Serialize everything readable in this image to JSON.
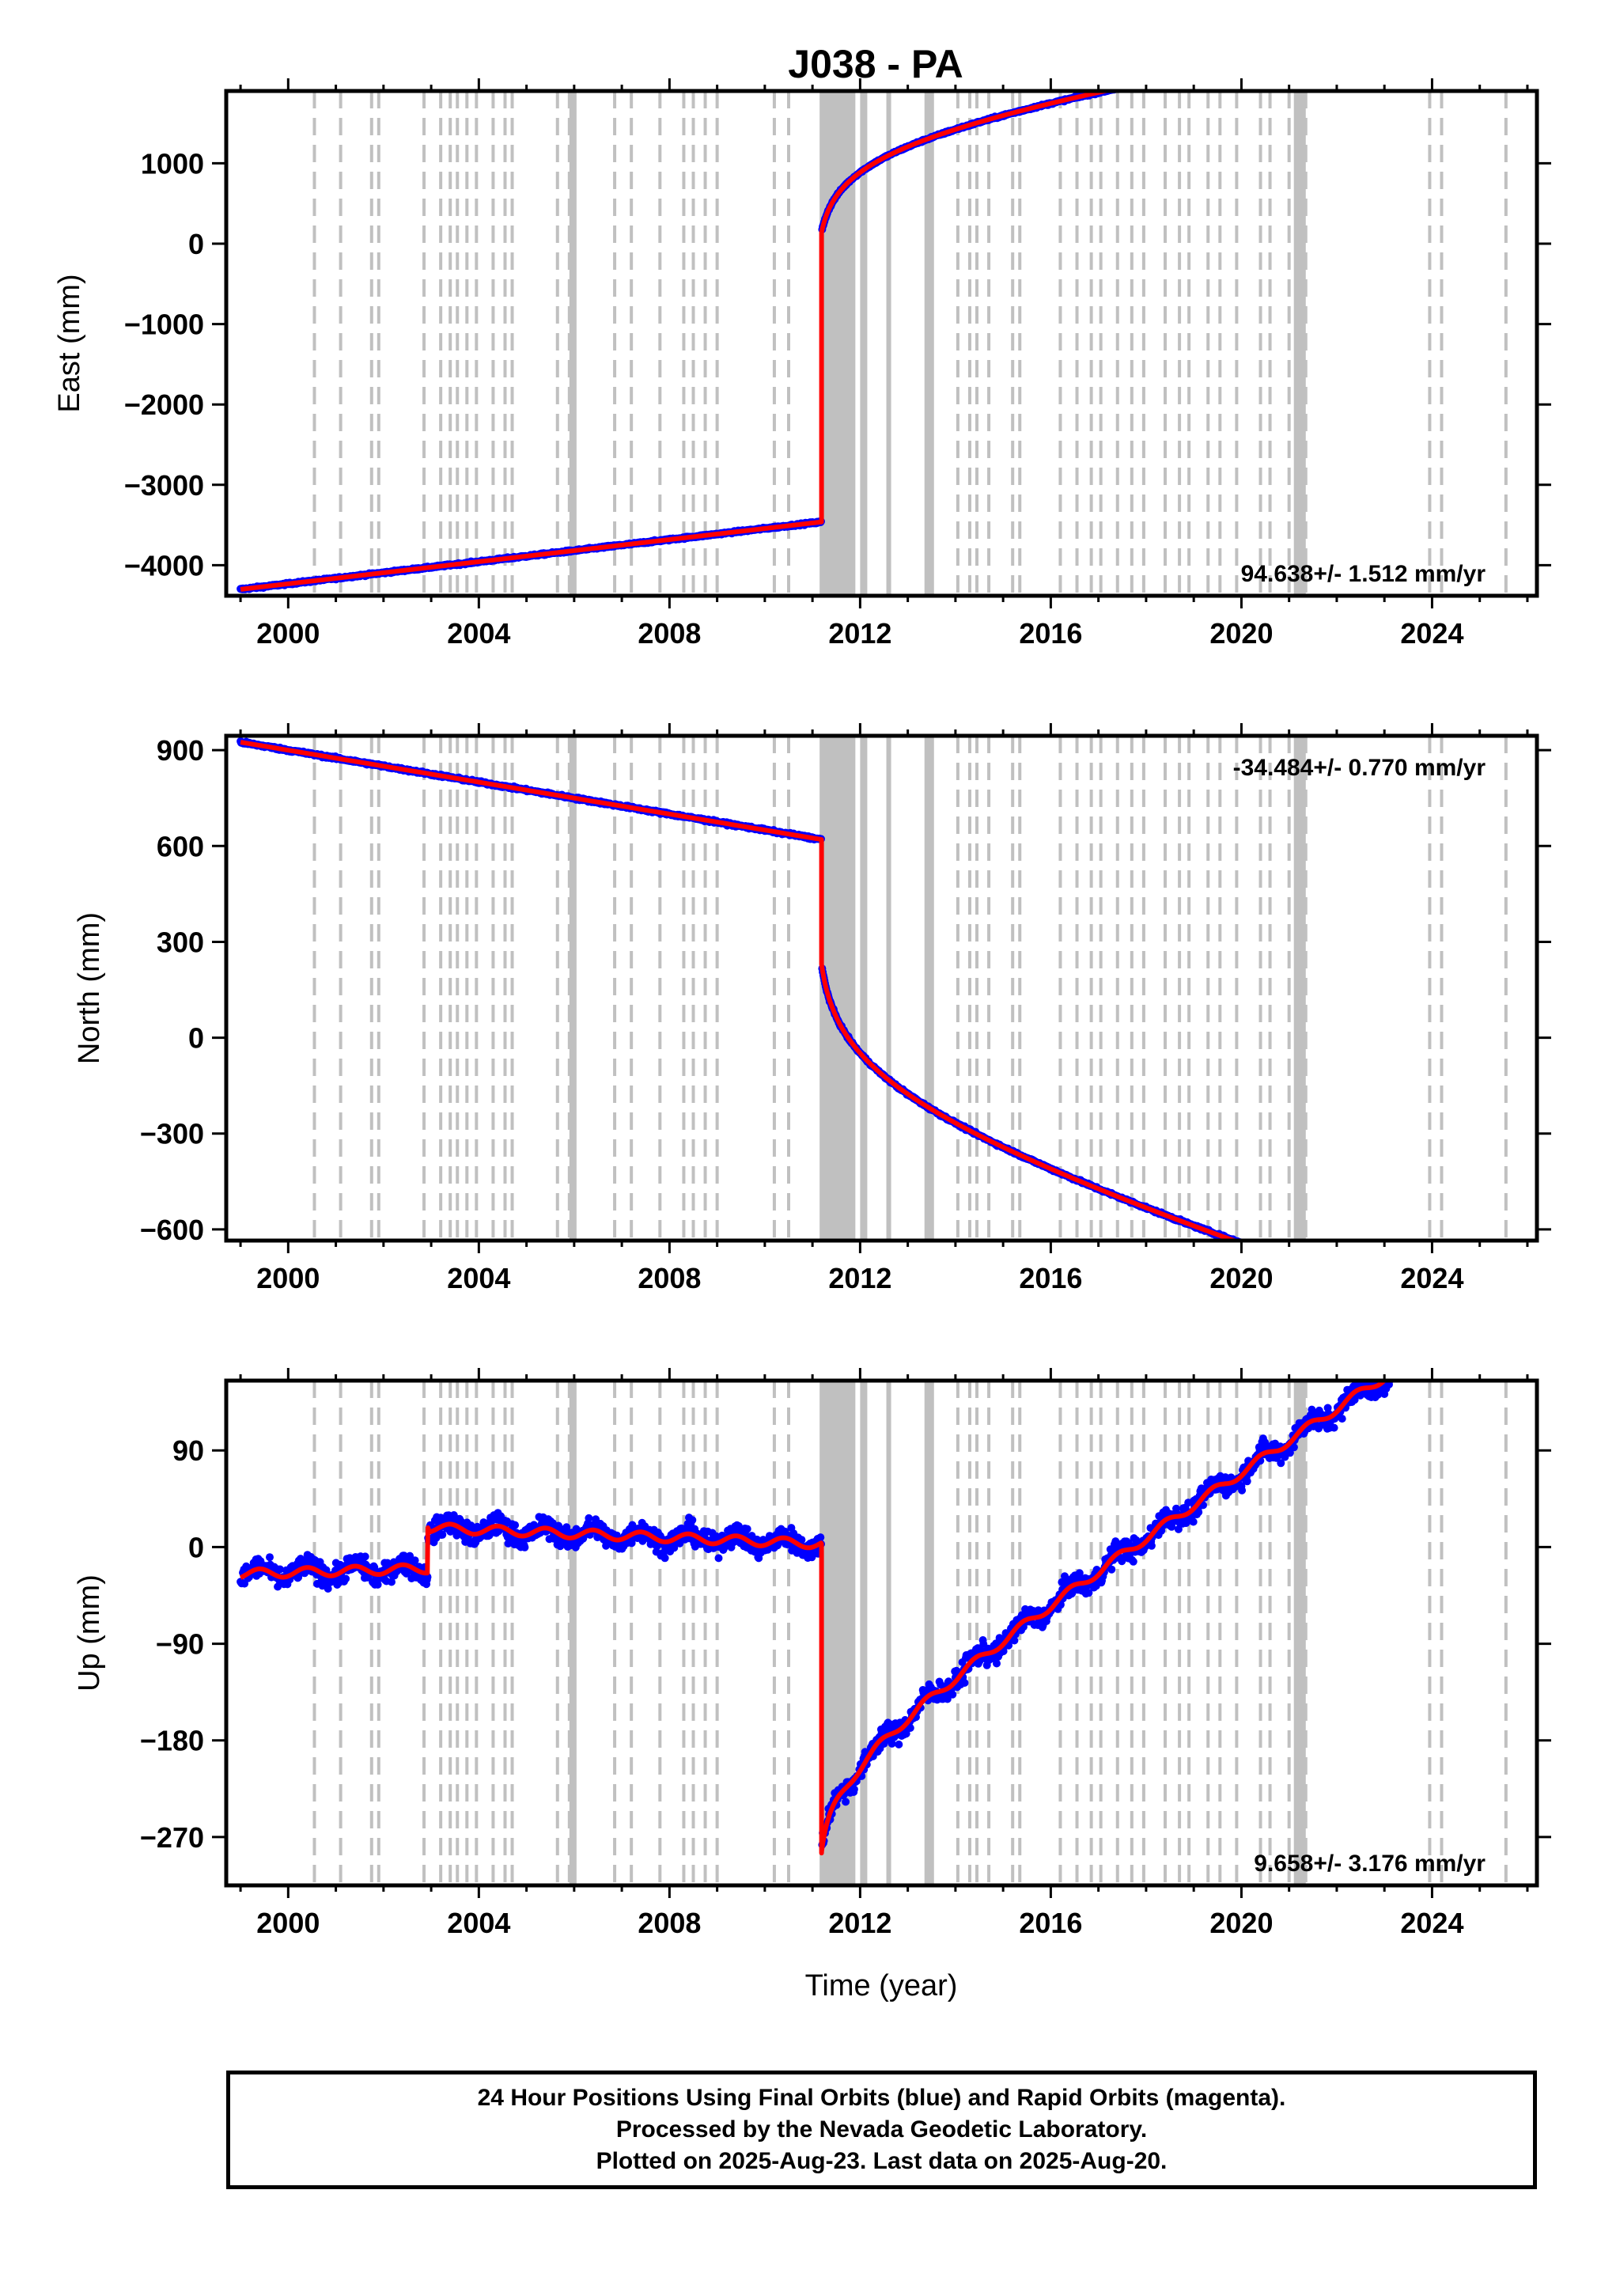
{
  "chart_data": {
    "title": "J038 - PA",
    "xlabel": "Time (year)",
    "x_range": [
      1998.7,
      2026.2
    ],
    "x_ticks": [
      2000,
      2004,
      2008,
      2012,
      2016,
      2020,
      2024
    ],
    "x_tick_labels": [
      "2000",
      "2004",
      "2008",
      "2012",
      "2016",
      "2020",
      "2024"
    ],
    "event_lines": [
      2000.55,
      2001.1,
      2001.75,
      2001.9,
      2002.85,
      2003.2,
      2003.4,
      2003.55,
      2003.75,
      2003.95,
      2004.3,
      2004.55,
      2004.7,
      2005.65,
      2005.9,
      2006.0,
      2006.85,
      2007.2,
      2007.8,
      2008.3,
      2008.5,
      2008.75,
      2009.0,
      2010.2,
      2010.5,
      2014.05,
      2014.3,
      2014.45,
      2014.7,
      2015.2,
      2015.35,
      2016.2,
      2016.55,
      2016.85,
      2017.05,
      2017.4,
      2017.7,
      2017.95,
      2018.4,
      2018.7,
      2018.9,
      2019.3,
      2019.55,
      2019.9,
      2020.4,
      2020.6,
      2021.0,
      2021.15,
      2021.35,
      2023.95,
      2024.2,
      2025.55
    ],
    "event_bands": [
      {
        "from": 2011.15,
        "to": 2011.9
      },
      {
        "from": 2012.0,
        "to": 2012.15
      },
      {
        "from": 2012.55,
        "to": 2012.65
      },
      {
        "from": 2013.35,
        "to": 2013.55
      },
      {
        "from": 2005.9,
        "to": 2006.05
      },
      {
        "from": 2021.1,
        "to": 2021.35
      }
    ],
    "panels": [
      {
        "id": "east",
        "type": "scatter",
        "ylabel": "East (mm)",
        "ylim": [
          -4380,
          1900
        ],
        "y_ticks": [
          1000,
          0,
          -1000,
          -2000,
          -3000,
          -4000
        ],
        "y_tick_labels": [
          "1000",
          "0",
          "−1000",
          "−2000",
          "−3000",
          "−4000"
        ],
        "rate": "94.638+/- 1.512 mm/yr",
        "rate_position": "bottom-right",
        "noise_mm": 12,
        "seasonal_mm": 0,
        "pre_event": {
          "start": 1999.0,
          "end": 2011.19,
          "y0": -4300,
          "rate": 68.8
        },
        "post_event": {
          "start": 2011.19,
          "end": 2025.55,
          "offset": 3600,
          "log_amp": 336,
          "log_tau": 0.12,
          "rate": 74.5
        },
        "breaks": []
      },
      {
        "id": "north",
        "type": "scatter",
        "ylabel": "North (mm)",
        "ylim": [
          -635,
          945
        ],
        "y_ticks": [
          900,
          600,
          300,
          0,
          -300,
          -600
        ],
        "y_tick_labels": [
          "900",
          "600",
          "300",
          "0",
          "−300",
          "−600"
        ],
        "rate": "-34.484+/- 0.770 mm/yr",
        "rate_position": "top-right",
        "noise_mm": 4,
        "seasonal_mm": 0,
        "pre_event": {
          "start": 1999.0,
          "end": 2011.19,
          "y0": 925,
          "rate": -25.0
        },
        "post_event": {
          "start": 2011.19,
          "end": 2025.55,
          "offset": -390,
          "log_amp": -120,
          "log_tau": 0.12,
          "rate": -40.5
        },
        "breaks": []
      },
      {
        "id": "up",
        "type": "scatter",
        "ylabel": "Up (mm)",
        "ylim": [
          -315,
          155
        ],
        "y_ticks": [
          90,
          0,
          -90,
          -180,
          -270
        ],
        "y_tick_labels": [
          "90",
          "0",
          "−90",
          "−180",
          "−270"
        ],
        "rate": "9.658+/- 3.176 mm/yr",
        "rate_position": "bottom-right",
        "noise_mm": 10,
        "seasonal_mm": 6,
        "pre_event": {
          "start": 1999.0,
          "end": 2011.19,
          "y0": -23,
          "rate": 0
        },
        "breaks": [
          {
            "at": 2002.93,
            "offset": 33
          }
        ],
        "pre_segments": [
          {
            "start": 1999.0,
            "end": 2002.93,
            "y_start": -25,
            "y_end": -20
          },
          {
            "start": 2002.93,
            "end": 2011.19,
            "y_start": 18,
            "y_end": 3
          }
        ],
        "post_event": {
          "start": 2011.19,
          "end": 2025.55,
          "y_start": -285,
          "log_amp": 24,
          "log_tau": 0.08,
          "rate": 27.4
        }
      }
    ],
    "series": [
      {
        "name": "Final Orbits",
        "color": "#0000ff"
      },
      {
        "name": "Rapid Orbits",
        "color": "#ff00ff"
      },
      {
        "name": "model",
        "color": "#ff0000"
      }
    ]
  },
  "footer": {
    "line1": "24 Hour Positions Using Final Orbits (blue) and Rapid Orbits (magenta).",
    "line2": "Processed by the Nevada Geodetic Laboratory.",
    "line3": "Plotted on 2025-Aug-23. Last data on 2025-Aug-20."
  },
  "colors": {
    "final": "#0000ff",
    "rapid": "#ff00ff",
    "model": "#ff0000",
    "event": "#c0c0c0"
  }
}
